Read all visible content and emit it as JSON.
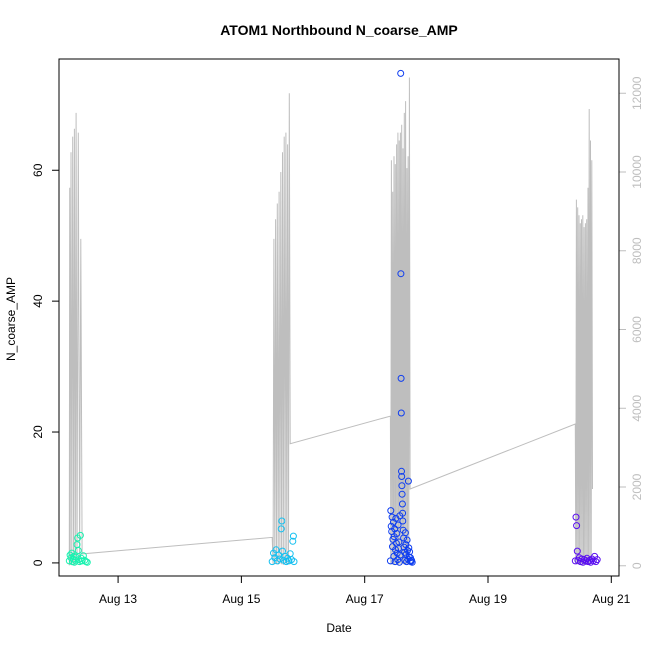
{
  "chart_data": {
    "type": "scatter",
    "title": "ATOM1 Northbound N_coarse_AMP",
    "xlabel": "Date",
    "ylabel": "N_coarse_AMP",
    "xlim": [
      "2014-08-12T01:00",
      "2014-08-21T03:00"
    ],
    "ylim": [
      -2,
      77
    ],
    "x_ticks": [
      {
        "label": "Aug 13",
        "value": "2014-08-13T00:00"
      },
      {
        "label": "Aug 15",
        "value": "2014-08-15T00:00"
      },
      {
        "label": "Aug 17",
        "value": "2014-08-17T00:00"
      },
      {
        "label": "Aug 19",
        "value": "2014-08-19T00:00"
      },
      {
        "label": "Aug 21",
        "value": "2014-08-21T00:00"
      }
    ],
    "y_ticks": [
      0,
      20,
      40,
      60
    ],
    "y2lim": [
      -260,
      12870
    ],
    "y2_ticks": [
      0,
      2000,
      4000,
      6000,
      8000,
      10000,
      12000
    ],
    "grid": false,
    "series": [
      {
        "kind": "points",
        "color": "#1AF2B0",
        "points": [
          [
            "2014-08-12T05:00",
            0.3
          ],
          [
            "2014-08-12T05:20",
            1.2
          ],
          [
            "2014-08-12T05:40",
            0.8
          ],
          [
            "2014-08-12T06:00",
            1.5
          ],
          [
            "2014-08-12T06:15",
            0.2
          ],
          [
            "2014-08-12T06:30",
            0.6
          ],
          [
            "2014-08-12T06:45",
            1.0
          ],
          [
            "2014-08-12T07:00",
            0.1
          ],
          [
            "2014-08-12T07:20",
            0.4
          ],
          [
            "2014-08-12T07:40",
            0.9
          ],
          [
            "2014-08-12T08:00",
            2.8
          ],
          [
            "2014-08-12T08:15",
            3.8
          ],
          [
            "2014-08-12T08:30",
            1.9
          ],
          [
            "2014-08-12T08:45",
            0.5
          ],
          [
            "2014-08-12T09:00",
            0.2
          ],
          [
            "2014-08-12T09:20",
            4.2
          ],
          [
            "2014-08-12T09:40",
            0.7
          ],
          [
            "2014-08-12T10:00",
            0.3
          ],
          [
            "2014-08-12T10:30",
            1.1
          ],
          [
            "2014-08-12T11:00",
            0.4
          ],
          [
            "2014-08-12T11:30",
            0.2
          ],
          [
            "2014-08-12T12:00",
            0.1
          ]
        ]
      },
      {
        "kind": "points",
        "color": "#15C0F0",
        "points": [
          [
            "2014-08-15T12:00",
            0.2
          ],
          [
            "2014-08-15T12:30",
            1.5
          ],
          [
            "2014-08-15T13:00",
            0.8
          ],
          [
            "2014-08-15T13:30",
            2.0
          ],
          [
            "2014-08-15T14:00",
            0.3
          ],
          [
            "2014-08-15T14:30",
            1.2
          ],
          [
            "2014-08-15T15:00",
            0.6
          ],
          [
            "2014-08-15T15:30",
            5.2
          ],
          [
            "2014-08-15T15:45",
            6.4
          ],
          [
            "2014-08-15T16:00",
            1.8
          ],
          [
            "2014-08-15T16:30",
            0.4
          ],
          [
            "2014-08-15T17:00",
            1.0
          ],
          [
            "2014-08-15T17:30",
            0.2
          ],
          [
            "2014-08-15T18:00",
            0.7
          ],
          [
            "2014-08-15T18:30",
            0.3
          ],
          [
            "2014-08-15T19:00",
            1.4
          ],
          [
            "2014-08-15T19:30",
            0.5
          ],
          [
            "2014-08-15T20:00",
            3.3
          ],
          [
            "2014-08-15T20:15",
            4.1
          ],
          [
            "2014-08-15T20:30",
            0.2
          ]
        ]
      },
      {
        "kind": "points",
        "color": "#0F3EF0",
        "points": [
          [
            "2014-08-17T10:00",
            0.3
          ],
          [
            "2014-08-17T10:10",
            8.0
          ],
          [
            "2014-08-17T10:20",
            5.6
          ],
          [
            "2014-08-17T10:30",
            4.8
          ],
          [
            "2014-08-17T10:40",
            7.0
          ],
          [
            "2014-08-17T10:50",
            2.5
          ],
          [
            "2014-08-17T11:00",
            3.6
          ],
          [
            "2014-08-17T11:10",
            6.2
          ],
          [
            "2014-08-17T11:20",
            1.0
          ],
          [
            "2014-08-17T11:30",
            4.0
          ],
          [
            "2014-08-17T11:40",
            5.2
          ],
          [
            "2014-08-17T11:50",
            0.2
          ],
          [
            "2014-08-17T12:00",
            2.0
          ],
          [
            "2014-08-17T12:10",
            6.8
          ],
          [
            "2014-08-17T12:20",
            3.0
          ],
          [
            "2014-08-17T12:30",
            4.5
          ],
          [
            "2014-08-17T12:40",
            1.5
          ],
          [
            "2014-08-17T12:50",
            0.5
          ],
          [
            "2014-08-17T13:00",
            5.8
          ],
          [
            "2014-08-17T13:10",
            2.2
          ],
          [
            "2014-08-17T13:20",
            3.2
          ],
          [
            "2014-08-17T13:30",
            0.1
          ],
          [
            "2014-08-17T13:40",
            7.2
          ],
          [
            "2014-08-17T13:50",
            1.2
          ],
          [
            "2014-08-17T14:00",
            74.8
          ],
          [
            "2014-08-17T14:05",
            44.2
          ],
          [
            "2014-08-17T14:10",
            28.2
          ],
          [
            "2014-08-17T14:15",
            22.9
          ],
          [
            "2014-08-17T14:20",
            14.0
          ],
          [
            "2014-08-17T14:25",
            13.2
          ],
          [
            "2014-08-17T14:30",
            11.8
          ],
          [
            "2014-08-17T14:35",
            10.5
          ],
          [
            "2014-08-17T14:40",
            9.0
          ],
          [
            "2014-08-17T14:45",
            7.6
          ],
          [
            "2014-08-17T14:50",
            6.4
          ],
          [
            "2014-08-17T15:00",
            5.0
          ],
          [
            "2014-08-17T15:10",
            3.8
          ],
          [
            "2014-08-17T15:20",
            2.4
          ],
          [
            "2014-08-17T15:30",
            1.6
          ],
          [
            "2014-08-17T15:40",
            0.4
          ],
          [
            "2014-08-17T15:50",
            4.6
          ],
          [
            "2014-08-17T16:00",
            2.8
          ],
          [
            "2014-08-17T16:10",
            1.3
          ],
          [
            "2014-08-17T16:20",
            0.2
          ],
          [
            "2014-08-17T16:30",
            3.5
          ],
          [
            "2014-08-17T16:40",
            1.9
          ],
          [
            "2014-08-17T16:50",
            0.6
          ],
          [
            "2014-08-17T17:00",
            12.5
          ],
          [
            "2014-08-17T17:10",
            2.3
          ],
          [
            "2014-08-17T17:20",
            0.9
          ],
          [
            "2014-08-17T17:30",
            1.7
          ],
          [
            "2014-08-17T17:40",
            0.3
          ],
          [
            "2014-08-17T17:50",
            0.8
          ],
          [
            "2014-08-17T18:00",
            0.2
          ],
          [
            "2014-08-17T18:15",
            0.4
          ],
          [
            "2014-08-17T18:30",
            0.1
          ]
        ]
      },
      {
        "kind": "points",
        "color": "#5A0FF0",
        "points": [
          [
            "2014-08-20T10:00",
            0.3
          ],
          [
            "2014-08-20T10:15",
            7.0
          ],
          [
            "2014-08-20T10:30",
            5.7
          ],
          [
            "2014-08-20T10:45",
            1.8
          ],
          [
            "2014-08-20T11:00",
            0.4
          ],
          [
            "2014-08-20T11:30",
            0.8
          ],
          [
            "2014-08-20T12:00",
            0.2
          ],
          [
            "2014-08-20T12:30",
            0.6
          ],
          [
            "2014-08-20T13:00",
            0.1
          ],
          [
            "2014-08-20T13:30",
            0.5
          ],
          [
            "2014-08-20T14:00",
            0.3
          ],
          [
            "2014-08-20T14:30",
            0.7
          ],
          [
            "2014-08-20T15:00",
            0.2
          ],
          [
            "2014-08-20T15:30",
            0.4
          ],
          [
            "2014-08-20T16:00",
            0.1
          ],
          [
            "2014-08-20T16:30",
            0.6
          ],
          [
            "2014-08-20T17:00",
            0.3
          ],
          [
            "2014-08-20T17:30",
            1.0
          ],
          [
            "2014-08-20T18:00",
            0.2
          ],
          [
            "2014-08-20T18:30",
            0.5
          ]
        ]
      },
      {
        "kind": "line",
        "axis": "right",
        "color": "#BEBEBE",
        "points": [
          [
            "2014-08-12T05:00",
            10
          ],
          [
            "2014-08-12T05:10",
            9600
          ],
          [
            "2014-08-12T05:20",
            20
          ],
          [
            "2014-08-12T05:40",
            10500
          ],
          [
            "2014-08-12T06:00",
            15
          ],
          [
            "2014-08-12T06:20",
            10900
          ],
          [
            "2014-08-12T06:40",
            10
          ],
          [
            "2014-08-12T07:00",
            11100
          ],
          [
            "2014-08-12T07:20",
            25
          ],
          [
            "2014-08-12T07:40",
            11500
          ],
          [
            "2014-08-12T08:00",
            30
          ],
          [
            "2014-08-12T08:30",
            11000
          ],
          [
            "2014-08-12T09:00",
            20
          ],
          [
            "2014-08-12T09:30",
            8300
          ],
          [
            "2014-08-12T10:00",
            300
          ],
          [
            "2014-08-15T12:00",
            720
          ],
          [
            "2014-08-15T12:20",
            50
          ],
          [
            "2014-08-15T12:40",
            8300
          ],
          [
            "2014-08-15T13:00",
            40
          ],
          [
            "2014-08-15T13:20",
            8800
          ],
          [
            "2014-08-15T13:40",
            60
          ],
          [
            "2014-08-15T14:00",
            9200
          ],
          [
            "2014-08-15T14:20",
            30
          ],
          [
            "2014-08-15T14:40",
            9500
          ],
          [
            "2014-08-15T15:00",
            50
          ],
          [
            "2014-08-15T15:20",
            10000
          ],
          [
            "2014-08-15T15:40",
            40
          ],
          [
            "2014-08-15T16:00",
            10500
          ],
          [
            "2014-08-15T16:20",
            20
          ],
          [
            "2014-08-15T16:40",
            10900
          ],
          [
            "2014-08-15T17:00",
            60
          ],
          [
            "2014-08-15T17:20",
            11000
          ],
          [
            "2014-08-15T17:40",
            30
          ],
          [
            "2014-08-15T18:00",
            10700
          ],
          [
            "2014-08-15T18:20",
            50
          ],
          [
            "2014-08-15T18:40",
            12000
          ],
          [
            "2014-08-15T19:00",
            3100
          ],
          [
            "2014-08-17T10:00",
            3800
          ],
          [
            "2014-08-17T10:10",
            40
          ],
          [
            "2014-08-17T10:25",
            10300
          ],
          [
            "2014-08-17T10:40",
            30
          ],
          [
            "2014-08-17T10:55",
            9500
          ],
          [
            "2014-08-17T11:10",
            50
          ],
          [
            "2014-08-17T11:25",
            10400
          ],
          [
            "2014-08-17T11:40",
            20
          ],
          [
            "2014-08-17T11:55",
            10200
          ],
          [
            "2014-08-17T12:10",
            60
          ],
          [
            "2014-08-17T12:25",
            10700
          ],
          [
            "2014-08-17T12:40",
            40
          ],
          [
            "2014-08-17T12:55",
            11000
          ],
          [
            "2014-08-17T13:10",
            30
          ],
          [
            "2014-08-17T13:25",
            10800
          ],
          [
            "2014-08-17T13:40",
            50
          ],
          [
            "2014-08-17T13:55",
            11000
          ],
          [
            "2014-08-17T14:10",
            20
          ],
          [
            "2014-08-17T14:25",
            11200
          ],
          [
            "2014-08-17T14:40",
            60
          ],
          [
            "2014-08-17T14:55",
            10600
          ],
          [
            "2014-08-17T15:10",
            40
          ],
          [
            "2014-08-17T15:25",
            11500
          ],
          [
            "2014-08-17T15:40",
            30
          ],
          [
            "2014-08-17T15:55",
            11800
          ],
          [
            "2014-08-17T16:10",
            50
          ],
          [
            "2014-08-17T16:25",
            10100
          ],
          [
            "2014-08-17T16:40",
            20
          ],
          [
            "2014-08-17T16:55",
            10400
          ],
          [
            "2014-08-17T17:10",
            40
          ],
          [
            "2014-08-17T17:25",
            12400
          ],
          [
            "2014-08-17T17:40",
            1950
          ],
          [
            "2014-08-20T10:00",
            3600
          ],
          [
            "2014-08-20T10:10",
            40
          ],
          [
            "2014-08-20T10:25",
            9300
          ],
          [
            "2014-08-20T10:40",
            30
          ],
          [
            "2014-08-20T10:55",
            9100
          ],
          [
            "2014-08-20T11:10",
            50
          ],
          [
            "2014-08-20T11:25",
            8900
          ],
          [
            "2014-08-20T11:40",
            20
          ],
          [
            "2014-08-20T11:55",
            8700
          ],
          [
            "2014-08-20T12:10",
            60
          ],
          [
            "2014-08-20T12:25",
            8800
          ],
          [
            "2014-08-20T12:40",
            40
          ],
          [
            "2014-08-20T12:55",
            8900
          ],
          [
            "2014-08-20T13:10",
            30
          ],
          [
            "2014-08-20T13:25",
            8600
          ],
          [
            "2014-08-20T13:40",
            50
          ],
          [
            "2014-08-20T13:55",
            8700
          ],
          [
            "2014-08-20T14:10",
            20
          ],
          [
            "2014-08-20T14:25",
            8800
          ],
          [
            "2014-08-20T14:40",
            60
          ],
          [
            "2014-08-20T14:55",
            9600
          ],
          [
            "2014-08-20T15:10",
            40
          ],
          [
            "2014-08-20T15:25",
            11600
          ],
          [
            "2014-08-20T15:40",
            30
          ],
          [
            "2014-08-20T15:55",
            10800
          ],
          [
            "2014-08-20T16:10",
            50
          ],
          [
            "2014-08-20T16:25",
            10300
          ],
          [
            "2014-08-20T16:40",
            1950
          ]
        ]
      }
    ]
  }
}
